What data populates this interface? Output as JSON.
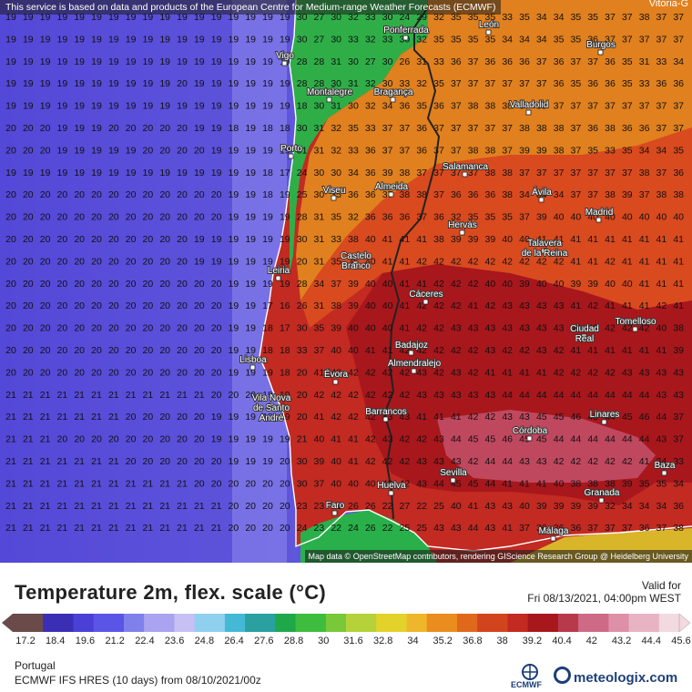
{
  "header": {
    "notice": "This service is based on data and products of the European Centre for Medium-range Weather Forecasts (ECMWF)"
  },
  "map": {
    "attribution": "Map data © OpenStreetMap contributors, rendering GIScience Research Group @ Heidelberg University",
    "corner_label": "Vitoria-G",
    "cities": [
      {
        "name": "Ponferrada"
      },
      {
        "name": "León"
      },
      {
        "name": "Burgos"
      },
      {
        "name": "Vigo"
      },
      {
        "name": "Montalegre"
      },
      {
        "name": "Bragança"
      },
      {
        "name": "Valladolid"
      },
      {
        "name": "Porto"
      },
      {
        "name": "Salamanca"
      },
      {
        "name": "Viseu"
      },
      {
        "name": "Almeida"
      },
      {
        "name": "Ávila"
      },
      {
        "name": "Madrid"
      },
      {
        "name": "Hervás"
      },
      {
        "name": "Talavera de la Reina"
      },
      {
        "name": "Castelo Branco"
      },
      {
        "name": "Leiria"
      },
      {
        "name": "Cáceres"
      },
      {
        "name": "Tomelloso"
      },
      {
        "name": "Ciudad Real"
      },
      {
        "name": "Badajoz"
      },
      {
        "name": "Lisboa"
      },
      {
        "name": "Almendralejo"
      },
      {
        "name": "Évora"
      },
      {
        "name": "Vila Nova de Santo André"
      },
      {
        "name": "Barrancos"
      },
      {
        "name": "Linares"
      },
      {
        "name": "Córdoba"
      },
      {
        "name": "Baza"
      },
      {
        "name": "Sevilla"
      },
      {
        "name": "Huelva"
      },
      {
        "name": "Granada"
      },
      {
        "name": "Faro"
      },
      {
        "name": "Málaga"
      }
    ],
    "grid_values": [
      [
        19,
        19,
        19,
        19,
        19,
        19,
        19,
        19,
        19,
        19,
        19,
        19,
        19,
        19,
        19,
        19,
        19,
        30,
        27,
        30,
        32,
        33,
        30,
        24,
        29,
        32,
        35,
        35,
        35,
        33,
        35,
        34,
        34,
        35,
        35,
        37,
        37,
        38,
        37,
        37
      ],
      [
        19,
        19,
        19,
        19,
        19,
        19,
        19,
        19,
        19,
        19,
        19,
        19,
        19,
        19,
        19,
        19,
        19,
        30,
        27,
        30,
        33,
        32,
        33,
        30,
        32,
        35,
        35,
        35,
        35,
        34,
        34,
        34,
        35,
        35,
        36,
        37,
        37,
        37,
        37,
        37
      ],
      [
        19,
        19,
        19,
        19,
        19,
        19,
        19,
        19,
        19,
        19,
        19,
        19,
        19,
        19,
        19,
        19,
        19,
        28,
        28,
        31,
        30,
        27,
        30,
        26,
        31,
        33,
        36,
        37,
        36,
        36,
        36,
        37,
        36,
        37,
        37,
        36,
        35,
        31,
        33,
        34
      ],
      [
        19,
        19,
        19,
        19,
        19,
        19,
        19,
        19,
        19,
        19,
        20,
        19,
        19,
        19,
        19,
        19,
        19,
        28,
        28,
        30,
        31,
        32,
        30,
        33,
        32,
        35,
        37,
        37,
        37,
        37,
        37,
        37,
        36,
        35,
        36,
        36,
        35,
        33,
        36,
        36
      ],
      [
        19,
        19,
        19,
        19,
        19,
        19,
        19,
        19,
        19,
        19,
        19,
        19,
        19,
        19,
        19,
        19,
        19,
        18,
        30,
        31,
        30,
        32,
        34,
        36,
        35,
        36,
        37,
        38,
        38,
        38,
        37,
        38,
        37,
        37,
        37,
        37,
        37,
        37,
        37,
        37
      ],
      [
        20,
        20,
        20,
        19,
        19,
        19,
        20,
        20,
        20,
        20,
        20,
        19,
        19,
        18,
        19,
        18,
        18,
        30,
        31,
        32,
        35,
        33,
        37,
        37,
        36,
        37,
        37,
        37,
        37,
        37,
        38,
        38,
        38,
        37,
        36,
        38,
        36,
        36,
        37,
        37
      ],
      [
        20,
        20,
        20,
        19,
        19,
        19,
        19,
        19,
        20,
        20,
        20,
        20,
        19,
        19,
        19,
        19,
        19,
        31,
        31,
        32,
        33,
        36,
        37,
        37,
        36,
        37,
        37,
        38,
        38,
        37,
        39,
        39,
        38,
        37,
        35,
        33,
        35,
        34,
        34,
        35
      ],
      [
        19,
        19,
        19,
        19,
        19,
        19,
        19,
        19,
        19,
        19,
        19,
        19,
        19,
        19,
        19,
        18,
        17,
        24,
        30,
        30,
        34,
        36,
        39,
        38,
        37,
        37,
        37,
        37,
        38,
        38,
        37,
        37,
        37,
        37,
        37,
        37,
        37,
        38,
        37,
        36
      ],
      [
        20,
        20,
        20,
        20,
        20,
        20,
        20,
        20,
        20,
        20,
        20,
        20,
        20,
        19,
        19,
        18,
        19,
        25,
        30,
        35,
        36,
        36,
        37,
        38,
        38,
        37,
        36,
        36,
        36,
        38,
        34,
        34,
        34,
        37,
        37,
        38,
        39,
        37,
        38,
        38
      ],
      [
        20,
        20,
        20,
        20,
        20,
        20,
        20,
        20,
        20,
        20,
        20,
        20,
        20,
        19,
        19,
        19,
        19,
        28,
        31,
        35,
        32,
        36,
        36,
        36,
        37,
        36,
        32,
        35,
        35,
        35,
        37,
        39,
        40,
        40,
        40,
        40,
        40,
        40,
        40,
        40
      ],
      [
        20,
        20,
        20,
        20,
        20,
        20,
        20,
        20,
        20,
        20,
        20,
        19,
        19,
        19,
        19,
        19,
        19,
        30,
        31,
        33,
        38,
        40,
        41,
        41,
        41,
        38,
        39,
        39,
        39,
        40,
        40,
        41,
        41,
        41,
        41,
        41,
        41,
        41,
        41,
        41
      ],
      [
        20,
        20,
        20,
        20,
        20,
        20,
        20,
        20,
        20,
        20,
        20,
        19,
        19,
        19,
        19,
        19,
        19,
        20,
        31,
        35,
        36,
        40,
        41,
        41,
        42,
        42,
        42,
        42,
        42,
        42,
        42,
        42,
        42,
        41,
        41,
        42,
        41,
        41,
        41,
        41
      ],
      [
        20,
        20,
        20,
        20,
        20,
        20,
        20,
        20,
        20,
        20,
        20,
        20,
        20,
        19,
        19,
        19,
        19,
        28,
        34,
        37,
        39,
        40,
        40,
        41,
        41,
        42,
        42,
        42,
        40,
        40,
        39,
        40,
        40,
        39,
        39,
        40,
        40,
        41,
        41,
        41
      ],
      [
        20,
        20,
        20,
        20,
        20,
        20,
        20,
        20,
        20,
        20,
        20,
        20,
        20,
        19,
        19,
        17,
        16,
        26,
        31,
        38,
        39,
        40,
        40,
        41,
        42,
        42,
        42,
        41,
        42,
        43,
        43,
        43,
        43,
        41,
        42,
        41,
        41,
        41,
        42,
        41
      ],
      [
        20,
        20,
        20,
        20,
        20,
        20,
        20,
        20,
        20,
        20,
        20,
        20,
        20,
        19,
        19,
        18,
        17,
        30,
        35,
        39,
        40,
        40,
        40,
        41,
        42,
        42,
        43,
        43,
        43,
        43,
        43,
        43,
        43,
        42,
        42,
        42,
        42,
        42,
        40,
        38
      ],
      [
        20,
        20,
        20,
        20,
        20,
        20,
        20,
        20,
        20,
        20,
        20,
        20,
        20,
        19,
        19,
        18,
        18,
        33,
        37,
        40,
        40,
        41,
        41,
        42,
        42,
        42,
        42,
        42,
        43,
        42,
        42,
        43,
        42,
        41,
        41,
        41,
        41,
        41,
        41,
        39
      ],
      [
        20,
        20,
        20,
        20,
        20,
        20,
        20,
        20,
        20,
        20,
        20,
        20,
        20,
        19,
        19,
        19,
        18,
        20,
        41,
        42,
        42,
        42,
        42,
        42,
        43,
        42,
        43,
        42,
        41,
        41,
        41,
        41,
        42,
        42,
        42,
        42,
        43,
        43,
        43,
        43
      ],
      [
        21,
        21,
        21,
        21,
        21,
        21,
        21,
        21,
        21,
        21,
        21,
        21,
        20,
        20,
        20,
        19,
        19,
        20,
        42,
        42,
        42,
        42,
        42,
        42,
        43,
        43,
        43,
        43,
        43,
        44,
        44,
        44,
        44,
        44,
        44,
        44,
        44,
        44,
        43,
        43
      ],
      [
        21,
        21,
        21,
        21,
        21,
        21,
        21,
        20,
        20,
        20,
        20,
        20,
        19,
        19,
        19,
        19,
        19,
        20,
        41,
        42,
        42,
        42,
        43,
        43,
        41,
        41,
        41,
        42,
        42,
        43,
        43,
        45,
        45,
        46,
        45,
        44,
        45,
        46,
        44,
        37
      ],
      [
        21,
        21,
        21,
        20,
        20,
        20,
        20,
        20,
        20,
        20,
        20,
        20,
        19,
        19,
        19,
        19,
        19,
        21,
        40,
        41,
        41,
        42,
        43,
        42,
        42,
        43,
        44,
        45,
        45,
        46,
        45,
        45,
        44,
        44,
        44,
        44,
        44,
        44,
        43,
        37
      ],
      [
        21,
        21,
        21,
        21,
        21,
        21,
        21,
        20,
        20,
        20,
        20,
        20,
        20,
        19,
        19,
        19,
        20,
        30,
        39,
        40,
        41,
        42,
        42,
        42,
        43,
        43,
        43,
        42,
        44,
        44,
        43,
        43,
        42,
        42,
        42,
        42,
        42,
        41,
        34,
        33
      ],
      [
        21,
        21,
        21,
        21,
        21,
        21,
        21,
        21,
        21,
        21,
        21,
        20,
        20,
        20,
        20,
        20,
        20,
        30,
        37,
        40,
        40,
        40,
        42,
        42,
        43,
        44,
        45,
        45,
        44,
        41,
        41,
        41,
        40,
        38,
        38,
        38,
        39,
        35,
        35,
        34
      ],
      [
        21,
        21,
        21,
        21,
        21,
        21,
        21,
        21,
        21,
        21,
        21,
        21,
        21,
        20,
        20,
        20,
        20,
        23,
        23,
        21,
        26,
        26,
        22,
        27,
        22,
        25,
        40,
        41,
        43,
        43,
        40,
        39,
        39,
        39,
        39,
        32,
        34,
        34,
        34,
        36
      ],
      [
        21,
        21,
        21,
        21,
        21,
        21,
        21,
        21,
        21,
        21,
        21,
        21,
        21,
        20,
        20,
        20,
        20,
        24,
        23,
        22,
        24,
        26,
        22,
        25,
        25,
        43,
        43,
        44,
        43,
        41,
        37,
        36,
        36,
        36,
        37,
        37,
        37,
        36,
        37,
        38
      ]
    ]
  },
  "legend": {
    "title": "Temperature 2m, flex. scale (°C)",
    "valid_label": "Valid for",
    "valid_time": "Fri 08/13/2021, 04:00pm WEST",
    "ticks": [
      "17.2",
      "18.4",
      "19.6",
      "21.2",
      "22.4",
      "23.6",
      "24.8",
      "26.4",
      "27.6",
      "28.8",
      "30",
      "31.6",
      "32.8",
      "34",
      "35.2",
      "36.8",
      "38",
      "39.2",
      "40.4",
      "42",
      "43.2",
      "44.4",
      "45.6"
    ],
    "region": "Portugal",
    "model_run": "ECMWF IFS HRES (10 days) from 08/10/2021/00z",
    "ecmwf_logo_text": "ECMWF",
    "brand": "meteologix.com",
    "colors": {
      "cold": "#4a3fd6",
      "mid_blue": "#6a63e0",
      "green": "#1ea84a",
      "yellow": "#e2d22a",
      "orange": "#e88a1e",
      "red": "#c71f1f",
      "dark_red": "#9c1518",
      "pink": "#e8a8b8"
    }
  }
}
